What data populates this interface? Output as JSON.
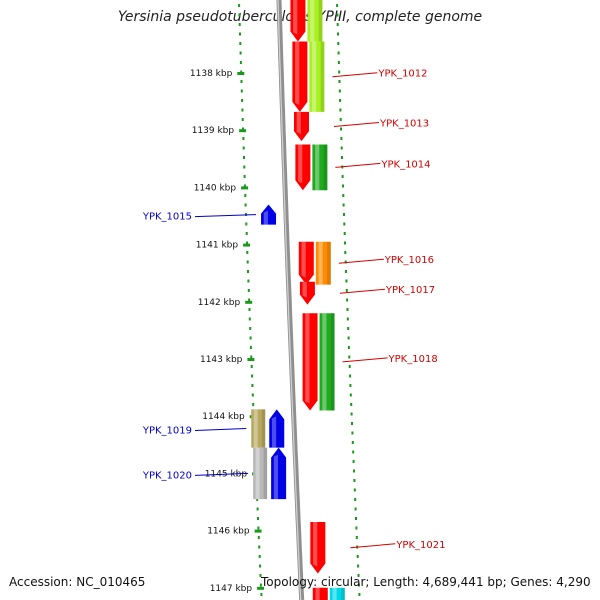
{
  "title": "Yersinia pseudotuberculosis YPIII, complete genome",
  "footer": {
    "accession": "Accession: NC_010465",
    "topology": "Topology: circular; Length: 4,689,441 bp; Genes: 4,290"
  },
  "colors": {
    "red": "#ff0000",
    "blue": "#0000e6",
    "lime": "#a8f020",
    "orange": "#ff8c00",
    "green": "#1faa1f",
    "olive": "#b8a860",
    "gray": "#b8b8b8",
    "cyan": "#00d8e8",
    "backbone": "#8f8f8f",
    "dots": "#1a9a1a",
    "label_red": "#d40000",
    "label_blue": "#0000c8"
  },
  "kbp_ticks": [
    {
      "kbp": 1138,
      "label": "1138 kbp"
    },
    {
      "kbp": 1139,
      "label": "1139 kbp"
    },
    {
      "kbp": 1140,
      "label": "1140 kbp"
    },
    {
      "kbp": 1141,
      "label": "1141 kbp"
    },
    {
      "kbp": 1142,
      "label": "1142 kbp"
    },
    {
      "kbp": 1143,
      "label": "1143 kbp"
    },
    {
      "kbp": 1144,
      "label": "1144 kbp"
    },
    {
      "kbp": 1145,
      "label": "1145 kbp"
    },
    {
      "kbp": 1146,
      "label": "1146 kbp"
    },
    {
      "kbp": 1147,
      "label": "1147 kbp"
    }
  ],
  "genes": [
    {
      "locus": "YPK_1012",
      "strand": "+",
      "start_kbp": 1137.45,
      "end_kbp": 1138.68,
      "cog": "lime",
      "labeled": true
    },
    {
      "locus": "YPK_1013",
      "strand": "+",
      "start_kbp": 1138.68,
      "end_kbp": 1139.19,
      "cog": "none",
      "labeled": true
    },
    {
      "locus": "YPK_1014",
      "strand": "+",
      "start_kbp": 1139.25,
      "end_kbp": 1140.05,
      "cog": "green",
      "labeled": true
    },
    {
      "locus": "YPK_1015",
      "strand": "-",
      "start_kbp": 1140.3,
      "end_kbp": 1140.65,
      "cog": "none",
      "labeled": true
    },
    {
      "locus": "YPK_1016",
      "strand": "+",
      "start_kbp": 1140.95,
      "end_kbp": 1141.7,
      "cog": "orange",
      "labeled": true
    },
    {
      "locus": "YPK_1017",
      "strand": "+",
      "start_kbp": 1141.65,
      "end_kbp": 1142.05,
      "cog": "none",
      "labeled": true
    },
    {
      "locus": "YPK_1018",
      "strand": "+",
      "start_kbp": 1142.2,
      "end_kbp": 1143.9,
      "cog": "green",
      "labeled": true
    },
    {
      "locus": "YPK_1019",
      "strand": "-",
      "start_kbp": 1143.88,
      "end_kbp": 1144.55,
      "cog": "olive",
      "labeled": true
    },
    {
      "locus": "YPK_1020",
      "strand": "-",
      "start_kbp": 1144.55,
      "end_kbp": 1145.45,
      "cog": "gray",
      "labeled": true
    },
    {
      "locus": "YPK_1021",
      "strand": "+",
      "start_kbp": 1145.85,
      "end_kbp": 1146.75,
      "cog": "none",
      "labeled": true
    },
    {
      "locus": "",
      "strand": "+",
      "start_kbp": 1136.5,
      "end_kbp": 1137.45,
      "cog": "lime",
      "labeled": false
    },
    {
      "locus": "",
      "strand": "+",
      "start_kbp": 1147.0,
      "end_kbp": 1147.5,
      "cog": "cyan",
      "labeled": false
    }
  ]
}
